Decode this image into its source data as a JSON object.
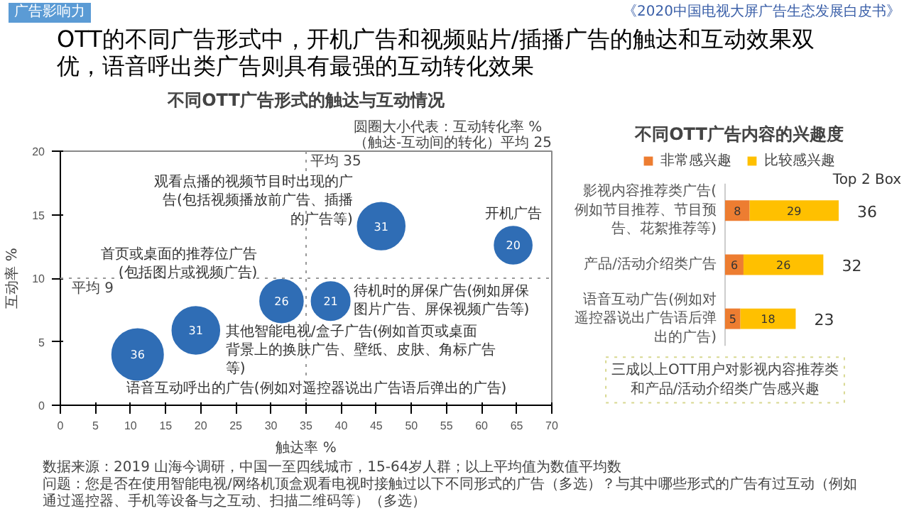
{
  "chart_data": [
    {
      "type": "bubble",
      "title": "不同OTT广告形式的触达与互动情况",
      "xlabel": "触达率 %",
      "ylabel": "互动率 %",
      "x": [
        11,
        19.3,
        31.5,
        38.5,
        45.7,
        64.5
      ],
      "values": [
        4,
        5.9,
        8.2,
        8.2,
        14.1,
        12.6
      ],
      "sizes": [
        36,
        31,
        26,
        21,
        31,
        20
      ],
      "color": "#2f6db5",
      "value_labels": [
        "36",
        "31",
        "26",
        "21",
        "31",
        "20"
      ],
      "grid": false,
      "xlim": [
        0,
        70
      ],
      "ylim": [
        0,
        20
      ],
      "xticks": [
        0,
        5,
        10,
        15,
        20,
        25,
        30,
        35,
        40,
        45,
        50,
        55,
        60,
        65,
        70
      ],
      "yticks": [
        0,
        5,
        10,
        15,
        20
      ],
      "ref_lines": [
        {
          "axis": "x",
          "value": 35,
          "label": "平均 35",
          "color": "#999999",
          "line_style": "dotted"
        },
        {
          "axis": "y",
          "value": 10,
          "label": "平均 9",
          "color": "#999999",
          "line_style": "dotted"
        }
      ],
      "annotations": [
        {
          "text": "语音互动呼出的广告(例如对遥控器说出广告语后弹出的广告)",
          "x": 11,
          "y": 4
        },
        {
          "text": "其他智能电视/盒子广告(例如首页或桌面背景上的换肤广告、壁纸、皮肤、角标广告等)",
          "x": 19.3,
          "y": 5.9
        },
        {
          "text": "首页或桌面的推荐位广告(包括图片或视频广告)",
          "x": 31.5,
          "y": 8.2
        },
        {
          "text": "待机时的屏保广告(例如屏保图片广告、屏保视频广告等)",
          "x": 38.5,
          "y": 8.2
        },
        {
          "text": "观看点播的视频节目时出现的广告(包括视频播放前广告、插播的广告等)",
          "x": 45.7,
          "y": 14.1
        },
        {
          "text": "开机广告",
          "x": 64.5,
          "y": 12.6
        },
        "广告影响力",
        "《2020中国电视大屏广告生态发展白皮书》",
        "OTT的不同广告形式中，开机广告和视频贴片/插播广告的触达和互动效果双优，语音呼出类广告则具有最强的互动转化效果",
        "圆圈大小代表：互动转化率 %（触达-互动间的转化）平均 25",
        "数据来源：2019 山海今调研，中国一至四线城市，15-64岁人群；以上平均值为数值平均数",
        "问题：您是否在使用智能电视/网络机顶盒观看电视时接触过以下不同形式的广告（多选）？与其中哪些形式的广告有过互动（例如通过遥控器、手机等设备与之互动、扫描二维码等）（多选）"
      ]
    },
    {
      "type": "bar",
      "orientation": "horizontal",
      "stacked": true,
      "title": "不同OTT广告内容的兴趣度",
      "categories": [
        "影视内容推荐类广告(例如节目推荐、节目预告、花絮推荐等)",
        "产品/活动介绍类广告",
        "语音互动广告(例如对遥控器说出广告语后弹出的广告)"
      ],
      "series": [
        {
          "name": "非常感兴趣",
          "color": "#ed7d31",
          "values": [
            8,
            6,
            5
          ]
        },
        {
          "name": "比较感兴趣",
          "color": "#ffc000",
          "values": [
            29,
            26,
            18
          ]
        }
      ],
      "data_labels": true,
      "legend": "top",
      "totals": [
        "36",
        "32",
        "23"
      ],
      "annotations": [
        "Top 2 Box",
        "三成以上OTT用户对影视内容推荐类和产品/活动介绍类广告感兴趣"
      ]
    }
  ]
}
